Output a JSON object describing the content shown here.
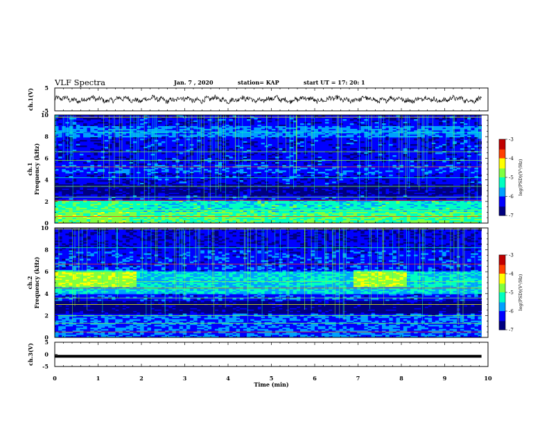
{
  "header": {
    "title": "VLF Spectra",
    "date": "Jan. 7 , 2020",
    "station": "station= KAP",
    "start": "start UT = 17: 20: 1"
  },
  "colormap": [
    "#000080",
    "#0000ff",
    "#00a0ff",
    "#00ffc0",
    "#80ff40",
    "#ffff00",
    "#ff4000",
    "#c00000"
  ],
  "chart_data": [
    {
      "type": "line",
      "panel": "ch1-waveform",
      "ylabel": "ch.1(V)",
      "ylim": [
        -5,
        5
      ],
      "yticks": [
        "5",
        "-5"
      ],
      "xlim": [
        0,
        10
      ],
      "approx_level_V": 0,
      "approx_amplitude_V": 2
    },
    {
      "type": "heatmap",
      "panel": "ch1-spectrogram",
      "ylabel": "ch.1 Frequency (kHz)",
      "ylim": [
        0,
        10
      ],
      "yticks": [
        "0",
        "2",
        "4",
        "6",
        "8",
        "10"
      ],
      "xlim": [
        0,
        10
      ],
      "data_end_min": 9.85,
      "colorbar": {
        "label": "log(PSD)(V²/Hz)",
        "range": [
          -7,
          -3
        ],
        "ticks": [
          "-3",
          "-4",
          "-5",
          "-6",
          "-7"
        ]
      }
    },
    {
      "type": "heatmap",
      "panel": "ch2-spectrogram",
      "ylabel": "ch.2 Frequency (kHz)",
      "ylim": [
        0,
        10
      ],
      "yticks": [
        "0",
        "2",
        "4",
        "6",
        "8",
        "10"
      ],
      "xlim": [
        0,
        10
      ],
      "data_end_min": 9.85,
      "colorbar": {
        "label": "log(PSD)(V²/Hz)",
        "range": [
          -7,
          -3
        ],
        "ticks": [
          "-3",
          "-4",
          "-5",
          "-6",
          "-7"
        ]
      }
    },
    {
      "type": "line",
      "panel": "ch3-waveform",
      "ylabel": "ch.3(V)",
      "ylim": [
        -5,
        5
      ],
      "yticks": [
        "5",
        "0",
        "-5"
      ],
      "xlim": [
        0,
        10
      ],
      "constant_value_V": -0.8
    }
  ],
  "xaxis": {
    "label": "Time (min)",
    "ticks": [
      "0",
      "1",
      "2",
      "3",
      "4",
      "5",
      "6",
      "7",
      "8",
      "9",
      "10"
    ]
  }
}
